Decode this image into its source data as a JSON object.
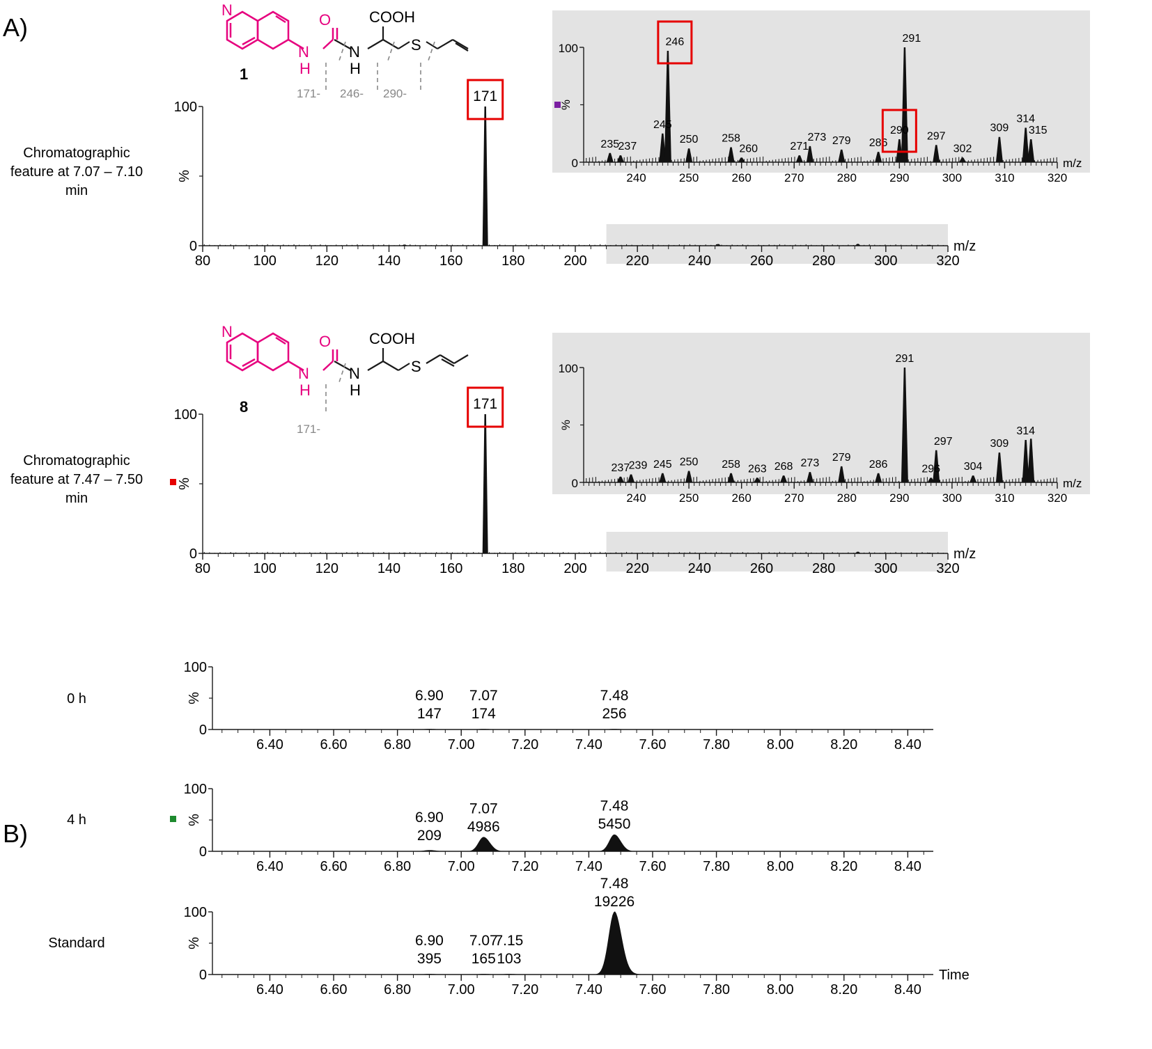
{
  "panels": {
    "A": "A)",
    "B": "B)"
  },
  "colors": {
    "magenta": "#e6007e",
    "red_box": "#e60000",
    "gray_region": "#e3e3e3",
    "purple_marker": "#7b1fa2",
    "red_marker": "#e60000",
    "green_marker": "#1e8a2e"
  },
  "structures": [
    {
      "number": "1",
      "cooh": "COOH",
      "n1": "N",
      "n2": "N",
      "nh": "H",
      "h2": "H",
      "o": "O",
      "s": "S",
      "fragments": [
        "171-",
        "246-",
        "290-"
      ]
    },
    {
      "number": "8",
      "cooh": "COOH",
      "n1": "N",
      "n2": "N",
      "nh": "H",
      "h2": "H",
      "o": "O",
      "s": "S",
      "fragments": [
        "171-"
      ]
    }
  ],
  "chart_data": [
    {
      "type": "bar",
      "name": "spectrum-1",
      "row_label_lines": [
        "Chromatographic",
        "feature at 7.07 – 7.10",
        "min"
      ],
      "xlabel": "m/z",
      "ylabel": "%",
      "xlim": [
        80,
        320
      ],
      "ylim": [
        0,
        100
      ],
      "xticks": [
        "80",
        "100",
        "120",
        "140",
        "160",
        "180",
        "200",
        "220",
        "240",
        "260",
        "280",
        "300",
        "320"
      ],
      "yticks": [
        "0",
        "100"
      ],
      "highlight_range": [
        210,
        320
      ],
      "peaks": [
        {
          "x": 171,
          "y": 100
        },
        {
          "x": 145,
          "y": 0.8
        },
        {
          "x": 246,
          "y": 1.2
        },
        {
          "x": 291,
          "y": 1.3
        },
        {
          "x": 314,
          "y": 0.6
        }
      ],
      "labels": [
        {
          "x": 171,
          "text": "171",
          "boxed": true
        }
      ]
    },
    {
      "type": "bar",
      "name": "inset-1",
      "xlabel": "m/z",
      "ylabel": "%",
      "xlim": [
        230,
        320
      ],
      "ylim": [
        0,
        100
      ],
      "xticks": [
        "240",
        "250",
        "260",
        "270",
        "280",
        "290",
        "300",
        "310",
        "320"
      ],
      "yticks": [
        "0",
        "100"
      ],
      "peaks": [
        {
          "x": 235,
          "y": 8
        },
        {
          "x": 237,
          "y": 6
        },
        {
          "x": 245,
          "y": 25
        },
        {
          "x": 246,
          "y": 97
        },
        {
          "x": 250,
          "y": 12
        },
        {
          "x": 258,
          "y": 13
        },
        {
          "x": 260,
          "y": 4
        },
        {
          "x": 271,
          "y": 6
        },
        {
          "x": 273,
          "y": 14
        },
        {
          "x": 279,
          "y": 11
        },
        {
          "x": 286,
          "y": 9
        },
        {
          "x": 290,
          "y": 20
        },
        {
          "x": 291,
          "y": 100
        },
        {
          "x": 297,
          "y": 15
        },
        {
          "x": 302,
          "y": 4
        },
        {
          "x": 309,
          "y": 22
        },
        {
          "x": 314,
          "y": 30
        },
        {
          "x": 315,
          "y": 20
        }
      ],
      "labels": [
        {
          "x": 235,
          "text": "235"
        },
        {
          "x": 237,
          "text": "237"
        },
        {
          "x": 245,
          "text": "245"
        },
        {
          "x": 246,
          "text": "246",
          "boxed": true
        },
        {
          "x": 250,
          "text": "250"
        },
        {
          "x": 258,
          "text": "258"
        },
        {
          "x": 260,
          "text": "260"
        },
        {
          "x": 271,
          "text": "271"
        },
        {
          "x": 273,
          "text": "273"
        },
        {
          "x": 279,
          "text": "279"
        },
        {
          "x": 286,
          "text": "286"
        },
        {
          "x": 290,
          "text": "290",
          "boxed": true
        },
        {
          "x": 291,
          "text": "291"
        },
        {
          "x": 297,
          "text": "297"
        },
        {
          "x": 302,
          "text": "302"
        },
        {
          "x": 309,
          "text": "309"
        },
        {
          "x": 314,
          "text": "314"
        },
        {
          "x": 315,
          "text": "315"
        }
      ]
    },
    {
      "type": "bar",
      "name": "spectrum-8",
      "row_label_lines": [
        "Chromatographic",
        "feature at 7.47 – 7.50",
        "min"
      ],
      "xlabel": "m/z",
      "ylabel": "%",
      "xlim": [
        80,
        320
      ],
      "ylim": [
        0,
        100
      ],
      "xticks": [
        "80",
        "100",
        "120",
        "140",
        "160",
        "180",
        "200",
        "220",
        "240",
        "260",
        "280",
        "300",
        "320"
      ],
      "yticks": [
        "0",
        "100"
      ],
      "highlight_range": [
        210,
        320
      ],
      "peaks": [
        {
          "x": 171,
          "y": 100
        },
        {
          "x": 145,
          "y": 0.6
        },
        {
          "x": 291,
          "y": 1.2
        },
        {
          "x": 314,
          "y": 0.5
        }
      ],
      "labels": [
        {
          "x": 171,
          "text": "171",
          "boxed": true
        }
      ]
    },
    {
      "type": "bar",
      "name": "inset-8",
      "xlabel": "m/z",
      "ylabel": "%",
      "xlim": [
        230,
        320
      ],
      "ylim": [
        0,
        100
      ],
      "xticks": [
        "240",
        "250",
        "260",
        "270",
        "280",
        "290",
        "300",
        "310",
        "320"
      ],
      "yticks": [
        "0",
        "100"
      ],
      "peaks": [
        {
          "x": 237,
          "y": 5
        },
        {
          "x": 239,
          "y": 7
        },
        {
          "x": 245,
          "y": 8
        },
        {
          "x": 250,
          "y": 10
        },
        {
          "x": 258,
          "y": 8
        },
        {
          "x": 263,
          "y": 4
        },
        {
          "x": 268,
          "y": 6
        },
        {
          "x": 273,
          "y": 9
        },
        {
          "x": 279,
          "y": 14
        },
        {
          "x": 286,
          "y": 8
        },
        {
          "x": 291,
          "y": 100
        },
        {
          "x": 296,
          "y": 4
        },
        {
          "x": 297,
          "y": 28
        },
        {
          "x": 304,
          "y": 6
        },
        {
          "x": 309,
          "y": 26
        },
        {
          "x": 314,
          "y": 37
        },
        {
          "x": 315,
          "y": 38
        }
      ],
      "labels": [
        {
          "x": 237,
          "text": "237"
        },
        {
          "x": 239,
          "text": "239"
        },
        {
          "x": 245,
          "text": "245"
        },
        {
          "x": 250,
          "text": "250"
        },
        {
          "x": 258,
          "text": "258"
        },
        {
          "x": 263,
          "text": "263"
        },
        {
          "x": 268,
          "text": "268"
        },
        {
          "x": 273,
          "text": "273"
        },
        {
          "x": 279,
          "text": "279"
        },
        {
          "x": 286,
          "text": "286"
        },
        {
          "x": 291,
          "text": "291"
        },
        {
          "x": 296,
          "text": "296"
        },
        {
          "x": 297,
          "text": "297"
        },
        {
          "x": 304,
          "text": "304"
        },
        {
          "x": 309,
          "text": "309"
        },
        {
          "x": 314,
          "text": "314"
        }
      ]
    },
    {
      "type": "area",
      "name": "chromatogram-0h",
      "row_label_lines": [
        "0 h"
      ],
      "ylabel": "%",
      "xlim": [
        6.22,
        8.48
      ],
      "ylim": [
        0,
        100
      ],
      "xticks": [
        "6.40",
        "6.60",
        "6.80",
        "7.00",
        "7.20",
        "7.40",
        "7.60",
        "7.80",
        "8.00",
        "8.20",
        "8.40"
      ],
      "yticks": [
        "0",
        "100"
      ],
      "peaks": [
        {
          "rt": 6.9,
          "height": 1
        },
        {
          "rt": 7.07,
          "height": 1
        },
        {
          "rt": 7.48,
          "height": 1
        }
      ],
      "labels": [
        {
          "rt": "6.90",
          "area": "147"
        },
        {
          "rt": "7.07",
          "area": "174"
        },
        {
          "rt": "7.48",
          "area": "256"
        }
      ]
    },
    {
      "type": "area",
      "name": "chromatogram-4h",
      "row_label_lines": [
        "4 h"
      ],
      "ylabel": "%",
      "xlim": [
        6.22,
        8.48
      ],
      "ylim": [
        0,
        100
      ],
      "xticks": [
        "6.40",
        "6.60",
        "6.80",
        "7.00",
        "7.20",
        "7.40",
        "7.60",
        "7.80",
        "8.00",
        "8.20",
        "8.40"
      ],
      "yticks": [
        "0",
        "100"
      ],
      "peaks": [
        {
          "rt": 6.9,
          "height": 2
        },
        {
          "rt": 7.07,
          "height": 23
        },
        {
          "rt": 7.48,
          "height": 27
        }
      ],
      "labels": [
        {
          "rt": "6.90",
          "area": "209"
        },
        {
          "rt": "7.07",
          "area": "4986"
        },
        {
          "rt": "7.48",
          "area": "5450"
        }
      ]
    },
    {
      "type": "area",
      "name": "chromatogram-standard",
      "row_label_lines": [
        "Standard"
      ],
      "xlabel": "Time",
      "ylabel": "%",
      "xlim": [
        6.22,
        8.48
      ],
      "ylim": [
        0,
        100
      ],
      "xticks": [
        "6.40",
        "6.60",
        "6.80",
        "7.00",
        "7.20",
        "7.40",
        "7.60",
        "7.80",
        "8.00",
        "8.20",
        "8.40"
      ],
      "yticks": [
        "0",
        "100"
      ],
      "peaks": [
        {
          "rt": 6.9,
          "height": 1
        },
        {
          "rt": 7.07,
          "height": 1
        },
        {
          "rt": 7.15,
          "height": 1
        },
        {
          "rt": 7.48,
          "height": 100
        }
      ],
      "labels": [
        {
          "rt": "6.90",
          "area": "395"
        },
        {
          "rt": "7.07",
          "area": "165"
        },
        {
          "rt": "7.15",
          "area": "103"
        },
        {
          "rt": "7.48",
          "area": "19226"
        }
      ]
    }
  ]
}
